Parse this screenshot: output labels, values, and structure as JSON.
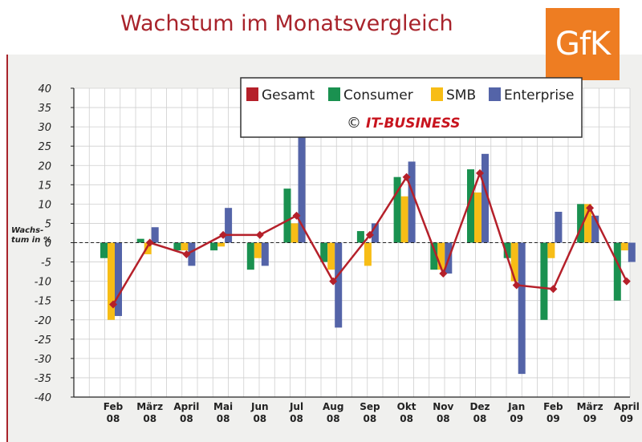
{
  "title": "Wachstum im Monatsvergleich",
  "logo_text": "GfK",
  "copyright_symbol": "©",
  "copyright_text": "IT-BUSINESS",
  "ylabel_line1": "Wachs-",
  "ylabel_line2": "tum in %",
  "colors": {
    "Gesamt": "#b5202a",
    "Consumer": "#1a9150",
    "SMB": "#f7bd16",
    "Enterprise": "#5464a8",
    "title": "#a8232b",
    "logo": "#ee7d22"
  },
  "chart_data": {
    "type": "bar",
    "title": "Wachstum im Monatsvergleich",
    "ylabel": "Wachstum in %",
    "xlabel": "",
    "ylim": [
      -40,
      40
    ],
    "yticks": [
      40,
      35,
      30,
      25,
      20,
      15,
      10,
      5,
      0,
      -5,
      -10,
      -15,
      -20,
      -25,
      -30,
      -35,
      -40
    ],
    "legend_position": "top-right",
    "grid": true,
    "categories": [
      [
        "Feb",
        "08"
      ],
      [
        "März",
        "08"
      ],
      [
        "April",
        "08"
      ],
      [
        "Mai",
        "08"
      ],
      [
        "Jun",
        "08"
      ],
      [
        "Jul",
        "08"
      ],
      [
        "Aug",
        "08"
      ],
      [
        "Sep",
        "08"
      ],
      [
        "Okt",
        "08"
      ],
      [
        "Nov",
        "08"
      ],
      [
        "Dez",
        "08"
      ],
      [
        "Jan",
        "09"
      ],
      [
        "Feb",
        "09"
      ],
      [
        "März",
        "09"
      ],
      [
        "April",
        "09"
      ]
    ],
    "series": [
      {
        "name": "Consumer",
        "type": "bar",
        "values": [
          -4,
          1,
          -2,
          -2,
          -7,
          14,
          -5,
          3,
          17,
          -7,
          19,
          -4,
          -20,
          10,
          -15
        ]
      },
      {
        "name": "SMB",
        "type": "bar",
        "values": [
          -20,
          -3,
          -2,
          -1,
          -4,
          5,
          -7,
          -6,
          12,
          -7,
          13,
          -10,
          -4,
          10,
          -2
        ]
      },
      {
        "name": "Enterprise",
        "type": "bar",
        "values": [
          -19,
          4,
          -6,
          9,
          -6,
          32,
          -22,
          5,
          21,
          -8,
          23,
          -34,
          8,
          7,
          -5
        ]
      },
      {
        "name": "Gesamt",
        "type": "line",
        "values": [
          -16,
          0,
          -3,
          2,
          2,
          7,
          -10,
          2,
          17,
          -8,
          18,
          -11,
          -12,
          9,
          -10
        ]
      }
    ],
    "legend": [
      "Gesamt",
      "Consumer",
      "SMB",
      "Enterprise"
    ]
  }
}
